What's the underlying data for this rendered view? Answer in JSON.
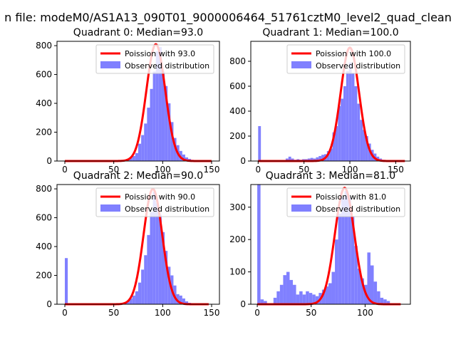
{
  "figure": {
    "suptitle": "n file: modeM0/AS1A13_090T01_9000006464_51761cztM0_level2_quad_clean"
  },
  "colors": {
    "histogram": "#8080ff",
    "poisson_line": "#ff0000",
    "axes": "#000000"
  },
  "chart_data": [
    {
      "type": "bar",
      "title": "Quadrant 0: Median=93.0",
      "median": 93.0,
      "xlim": [
        -8,
        158
      ],
      "ylim": [
        0,
        830
      ],
      "xticks": [
        0,
        50,
        100,
        150
      ],
      "yticks": [
        0,
        200,
        400,
        600,
        800
      ],
      "legend_position": "top-right",
      "legend": [
        "Poission with 93.0",
        "Observed distribution"
      ],
      "bin_width": 3,
      "histogram": [
        {
          "x": 0,
          "y": 2
        },
        {
          "x": 54,
          "y": 3
        },
        {
          "x": 57,
          "y": 6
        },
        {
          "x": 60,
          "y": 10
        },
        {
          "x": 63,
          "y": 14
        },
        {
          "x": 66,
          "y": 22
        },
        {
          "x": 69,
          "y": 35
        },
        {
          "x": 72,
          "y": 55
        },
        {
          "x": 75,
          "y": 120
        },
        {
          "x": 78,
          "y": 180
        },
        {
          "x": 81,
          "y": 260
        },
        {
          "x": 84,
          "y": 370
        },
        {
          "x": 87,
          "y": 500
        },
        {
          "x": 90,
          "y": 620
        },
        {
          "x": 93,
          "y": 760
        },
        {
          "x": 96,
          "y": 790
        },
        {
          "x": 99,
          "y": 620
        },
        {
          "x": 102,
          "y": 520
        },
        {
          "x": 105,
          "y": 400
        },
        {
          "x": 108,
          "y": 270
        },
        {
          "x": 111,
          "y": 160
        },
        {
          "x": 114,
          "y": 110
        },
        {
          "x": 117,
          "y": 70
        },
        {
          "x": 120,
          "y": 45
        },
        {
          "x": 123,
          "y": 25
        },
        {
          "x": 126,
          "y": 15
        },
        {
          "x": 129,
          "y": 8
        },
        {
          "x": 132,
          "y": 4
        }
      ],
      "poisson": {
        "lambda": 93.0,
        "x_range": [
          0,
          150
        ],
        "peak": 810
      }
    },
    {
      "type": "bar",
      "title": "Quadrant 1: Median=100.0",
      "median": 100.0,
      "xlim": [
        -8,
        166
      ],
      "ylim": [
        0,
        960
      ],
      "xticks": [
        0,
        50,
        100,
        150
      ],
      "yticks": [
        0,
        200,
        400,
        600,
        800
      ],
      "legend_position": "top-right",
      "legend": [
        "Poission with 100.0",
        "Observed distribution"
      ],
      "bin_width": 3,
      "histogram": [
        {
          "x": 0,
          "y": 280
        },
        {
          "x": 30,
          "y": 20
        },
        {
          "x": 33,
          "y": 35
        },
        {
          "x": 36,
          "y": 20
        },
        {
          "x": 39,
          "y": 10
        },
        {
          "x": 42,
          "y": 15
        },
        {
          "x": 45,
          "y": 10
        },
        {
          "x": 48,
          "y": 15
        },
        {
          "x": 51,
          "y": 15
        },
        {
          "x": 54,
          "y": 20
        },
        {
          "x": 57,
          "y": 25
        },
        {
          "x": 60,
          "y": 20
        },
        {
          "x": 63,
          "y": 30
        },
        {
          "x": 66,
          "y": 40
        },
        {
          "x": 69,
          "y": 50
        },
        {
          "x": 72,
          "y": 55
        },
        {
          "x": 75,
          "y": 80
        },
        {
          "x": 78,
          "y": 100
        },
        {
          "x": 81,
          "y": 230
        },
        {
          "x": 84,
          "y": 280
        },
        {
          "x": 87,
          "y": 440
        },
        {
          "x": 90,
          "y": 500
        },
        {
          "x": 93,
          "y": 600
        },
        {
          "x": 96,
          "y": 720
        },
        {
          "x": 99,
          "y": 790
        },
        {
          "x": 102,
          "y": 700
        },
        {
          "x": 105,
          "y": 600
        },
        {
          "x": 108,
          "y": 460
        },
        {
          "x": 111,
          "y": 330
        },
        {
          "x": 114,
          "y": 250
        },
        {
          "x": 117,
          "y": 200
        },
        {
          "x": 120,
          "y": 140
        },
        {
          "x": 123,
          "y": 90
        },
        {
          "x": 126,
          "y": 60
        },
        {
          "x": 129,
          "y": 35
        },
        {
          "x": 132,
          "y": 20
        },
        {
          "x": 135,
          "y": 10
        }
      ],
      "poisson": {
        "lambda": 100.0,
        "x_range": [
          0,
          160
        ],
        "peak": 910
      }
    },
    {
      "type": "bar",
      "title": "Quadrant 2: Median=90.0",
      "median": 90.0,
      "xlim": [
        -8,
        158
      ],
      "ylim": [
        0,
        830
      ],
      "xticks": [
        0,
        50,
        100,
        150
      ],
      "yticks": [
        0,
        200,
        400,
        600,
        800
      ],
      "legend_position": "top-right",
      "legend": [
        "Poission with 90.0",
        "Observed distribution"
      ],
      "bin_width": 3,
      "histogram": [
        {
          "x": 0,
          "y": 320
        },
        {
          "x": 60,
          "y": 5
        },
        {
          "x": 63,
          "y": 20
        },
        {
          "x": 66,
          "y": 40
        },
        {
          "x": 69,
          "y": 60
        },
        {
          "x": 72,
          "y": 90
        },
        {
          "x": 75,
          "y": 150
        },
        {
          "x": 78,
          "y": 240
        },
        {
          "x": 81,
          "y": 340
        },
        {
          "x": 84,
          "y": 480
        },
        {
          "x": 87,
          "y": 640
        },
        {
          "x": 90,
          "y": 780
        },
        {
          "x": 93,
          "y": 700
        },
        {
          "x": 96,
          "y": 620
        },
        {
          "x": 99,
          "y": 500
        },
        {
          "x": 102,
          "y": 370
        },
        {
          "x": 105,
          "y": 260
        },
        {
          "x": 108,
          "y": 200
        },
        {
          "x": 111,
          "y": 130
        },
        {
          "x": 114,
          "y": 70
        },
        {
          "x": 117,
          "y": 60
        },
        {
          "x": 120,
          "y": 40
        },
        {
          "x": 123,
          "y": 20
        },
        {
          "x": 126,
          "y": 10
        },
        {
          "x": 129,
          "y": 5
        }
      ],
      "poisson": {
        "lambda": 90.0,
        "x_range": [
          0,
          147
        ],
        "peak": 800
      }
    },
    {
      "type": "bar",
      "title": "Quadrant 3: Median=81.0",
      "median": 81.0,
      "xlim": [
        -6,
        142
      ],
      "ylim": [
        0,
        370
      ],
      "xticks": [
        0,
        50,
        100
      ],
      "yticks": [
        0,
        100,
        200,
        300
      ],
      "legend_position": "top-right",
      "legend": [
        "Poission with 81.0",
        "Observed distribution"
      ],
      "bin_width": 3,
      "histogram": [
        {
          "x": 0,
          "y": 370
        },
        {
          "x": 3,
          "y": 15
        },
        {
          "x": 6,
          "y": 10
        },
        {
          "x": 15,
          "y": 20
        },
        {
          "x": 18,
          "y": 40
        },
        {
          "x": 21,
          "y": 60
        },
        {
          "x": 24,
          "y": 90
        },
        {
          "x": 27,
          "y": 100
        },
        {
          "x": 30,
          "y": 75
        },
        {
          "x": 33,
          "y": 60
        },
        {
          "x": 36,
          "y": 30
        },
        {
          "x": 39,
          "y": 40
        },
        {
          "x": 42,
          "y": 30
        },
        {
          "x": 45,
          "y": 40
        },
        {
          "x": 48,
          "y": 35
        },
        {
          "x": 51,
          "y": 30
        },
        {
          "x": 54,
          "y": 25
        },
        {
          "x": 57,
          "y": 35
        },
        {
          "x": 60,
          "y": 45
        },
        {
          "x": 63,
          "y": 55
        },
        {
          "x": 66,
          "y": 65
        },
        {
          "x": 69,
          "y": 100
        },
        {
          "x": 72,
          "y": 200
        },
        {
          "x": 75,
          "y": 280
        },
        {
          "x": 78,
          "y": 330
        },
        {
          "x": 81,
          "y": 350
        },
        {
          "x": 84,
          "y": 330
        },
        {
          "x": 87,
          "y": 270
        },
        {
          "x": 90,
          "y": 180
        },
        {
          "x": 93,
          "y": 110
        },
        {
          "x": 96,
          "y": 80
        },
        {
          "x": 99,
          "y": 60
        },
        {
          "x": 102,
          "y": 160
        },
        {
          "x": 105,
          "y": 120
        },
        {
          "x": 108,
          "y": 70
        },
        {
          "x": 111,
          "y": 40
        },
        {
          "x": 114,
          "y": 20
        },
        {
          "x": 117,
          "y": 15
        },
        {
          "x": 120,
          "y": 10
        }
      ],
      "poisson": {
        "lambda": 81.0,
        "x_range": [
          0,
          133
        ],
        "peak": 360
      }
    }
  ]
}
